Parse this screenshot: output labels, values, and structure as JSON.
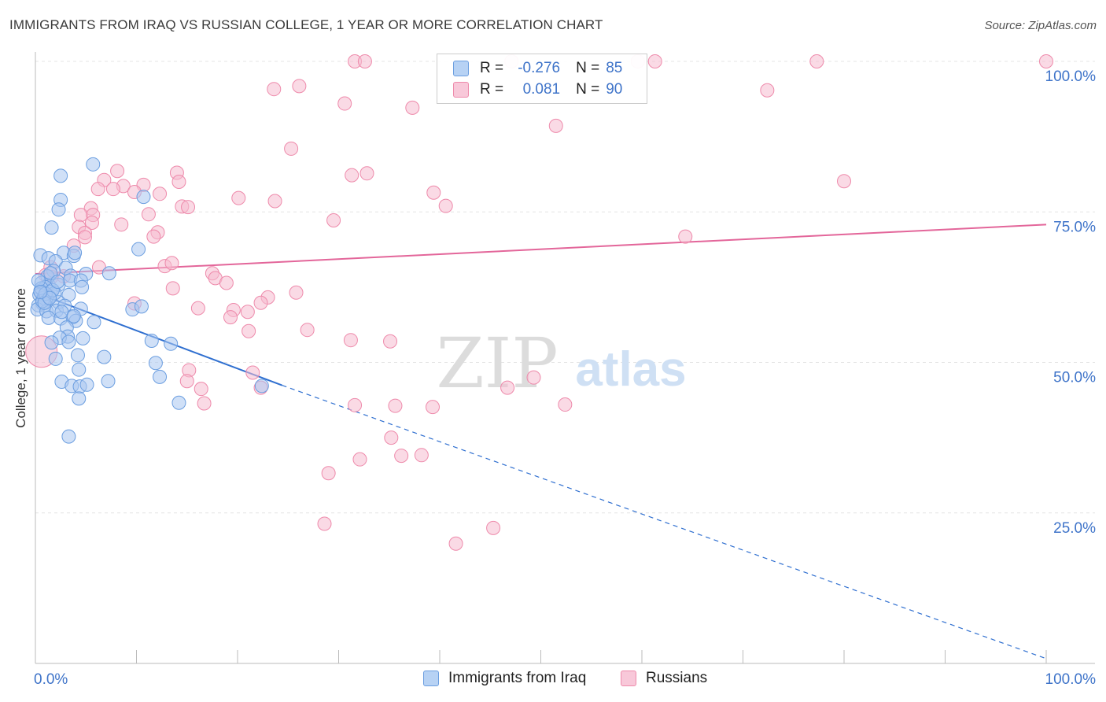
{
  "header": {
    "title": "IMMIGRANTS FROM IRAQ VS RUSSIAN COLLEGE, 1 YEAR OR MORE CORRELATION CHART",
    "source": "Source: ZipAtlas.com"
  },
  "watermark": {
    "zip": "ZIP",
    "atlas": "atlas"
  },
  "legend": {
    "r_label": "R =",
    "n_label": "N =",
    "series": [
      {
        "name": "Immigrants from Iraq",
        "r": "-0.276",
        "n": "85",
        "color": "#6b9ee0"
      },
      {
        "name": "Russians",
        "r": "0.081",
        "n": "90",
        "color": "#ee8aab"
      }
    ]
  },
  "colors": {
    "blue_fill": "#a9c7f0",
    "blue_stroke": "#6b9ee0",
    "blue_line": "#2f6fd0",
    "pink_fill": "#f6bcd0",
    "pink_stroke": "#ee8aab",
    "pink_line": "#e3669a",
    "axis_text": "#3f74c9",
    "grid": "#e4e4e4"
  },
  "chart_data": {
    "type": "scatter",
    "title": "IMMIGRANTS FROM IRAQ VS RUSSIAN COLLEGE, 1 YEAR OR MORE CORRELATION CHART",
    "xlabel": "",
    "ylabel": "College, 1 year or more",
    "xlim": [
      0,
      100
    ],
    "ylim": [
      0,
      100
    ],
    "x_tick_labels": [
      "0.0%",
      "100.0%"
    ],
    "y_tick_labels": [
      "100.0%",
      "75.0%",
      "50.0%",
      "25.0%"
    ],
    "y_ticks": [
      100,
      75,
      50,
      25
    ],
    "grid": true,
    "legend_position": "top-center",
    "series": [
      {
        "name": "Immigrants from Iraq",
        "color": "#6b9ee0",
        "trend": {
          "x0": 0,
          "y0": 61.6,
          "x1": 24.4,
          "y1": 46.2,
          "dashed_to_x": 100,
          "dashed_to_y": 0.8
        },
        "points": [
          [
            5.7,
            82.9
          ],
          [
            2.5,
            81.0
          ],
          [
            2.5,
            77.0
          ],
          [
            10.7,
            77.5
          ],
          [
            2.3,
            75.4
          ],
          [
            1.6,
            72.4
          ],
          [
            10.2,
            68.8
          ],
          [
            2.8,
            68.2
          ],
          [
            3.8,
            67.7
          ],
          [
            0.5,
            67.8
          ],
          [
            1.3,
            67.3
          ],
          [
            2.0,
            66.8
          ],
          [
            3.0,
            65.7
          ],
          [
            1.8,
            65.2
          ],
          [
            1.2,
            64.3
          ],
          [
            3.5,
            64.4
          ],
          [
            5.0,
            64.7
          ],
          [
            7.3,
            64.8
          ],
          [
            0.6,
            63.2
          ],
          [
            1.3,
            62.9
          ],
          [
            2.3,
            62.9
          ],
          [
            3.4,
            63.6
          ],
          [
            4.5,
            63.6
          ],
          [
            1.0,
            62.5
          ],
          [
            0.5,
            61.9
          ],
          [
            4.6,
            62.5
          ],
          [
            1.5,
            61.7
          ],
          [
            0.4,
            61.2
          ],
          [
            0.8,
            60.7
          ],
          [
            1.4,
            60.9
          ],
          [
            3.3,
            61.2
          ],
          [
            0.7,
            59.8
          ],
          [
            1.2,
            60.5
          ],
          [
            2.3,
            60.0
          ],
          [
            0.9,
            59.5
          ],
          [
            0.3,
            59.5
          ],
          [
            0.2,
            58.8
          ],
          [
            1.1,
            58.5
          ],
          [
            2.1,
            58.6
          ],
          [
            4.5,
            58.9
          ],
          [
            9.6,
            58.8
          ],
          [
            10.5,
            59.3
          ],
          [
            1.3,
            57.4
          ],
          [
            2.5,
            57.3
          ],
          [
            3.7,
            57.5
          ],
          [
            5.8,
            56.7
          ],
          [
            4.0,
            56.9
          ],
          [
            3.1,
            55.8
          ],
          [
            3.2,
            54.3
          ],
          [
            2.4,
            54.1
          ],
          [
            4.7,
            54.0
          ],
          [
            11.5,
            53.6
          ],
          [
            1.6,
            53.3
          ],
          [
            3.3,
            53.4
          ],
          [
            13.4,
            53.1
          ],
          [
            2.0,
            50.6
          ],
          [
            4.2,
            51.2
          ],
          [
            6.8,
            50.9
          ],
          [
            11.9,
            49.9
          ],
          [
            4.3,
            48.8
          ],
          [
            12.3,
            47.6
          ],
          [
            2.6,
            46.8
          ],
          [
            3.6,
            46.1
          ],
          [
            4.4,
            46.0
          ],
          [
            5.1,
            46.3
          ],
          [
            7.2,
            46.9
          ],
          [
            22.4,
            46.1
          ],
          [
            4.3,
            44.0
          ],
          [
            14.2,
            43.3
          ],
          [
            3.3,
            37.7
          ],
          [
            0.6,
            62.3
          ],
          [
            1.9,
            61.5
          ],
          [
            0.7,
            60.2
          ],
          [
            2.9,
            59.4
          ],
          [
            1.5,
            64.8
          ],
          [
            3.9,
            68.2
          ],
          [
            1.0,
            61.4
          ],
          [
            0.3,
            63.6
          ],
          [
            1.7,
            62.0
          ],
          [
            2.6,
            58.4
          ],
          [
            0.9,
            59.9
          ],
          [
            3.8,
            57.7
          ],
          [
            1.4,
            60.7
          ],
          [
            0.5,
            61.7
          ],
          [
            2.2,
            63.4
          ]
        ]
      },
      {
        "name": "Russians",
        "color": "#ee8aab",
        "trend": {
          "x0": 0,
          "y0": 64.7,
          "x1": 100,
          "y1": 72.9
        },
        "points": [
          [
            0.6,
            51.8
          ],
          [
            31.6,
            100.0
          ],
          [
            32.6,
            100.0
          ],
          [
            47.1,
            100.0
          ],
          [
            59.6,
            100.0
          ],
          [
            61.3,
            100.0
          ],
          [
            77.3,
            100.0
          ],
          [
            100.0,
            100.0
          ],
          [
            23.6,
            95.4
          ],
          [
            26.1,
            95.9
          ],
          [
            72.4,
            95.2
          ],
          [
            30.6,
            93.0
          ],
          [
            37.3,
            92.3
          ],
          [
            51.5,
            89.3
          ],
          [
            25.3,
            85.5
          ],
          [
            8.1,
            81.8
          ],
          [
            14.0,
            81.5
          ],
          [
            31.3,
            81.1
          ],
          [
            32.8,
            81.4
          ],
          [
            6.8,
            80.3
          ],
          [
            10.7,
            79.5
          ],
          [
            14.2,
            80.0
          ],
          [
            8.7,
            79.3
          ],
          [
            6.2,
            78.8
          ],
          [
            7.7,
            78.8
          ],
          [
            9.8,
            78.3
          ],
          [
            12.3,
            78.0
          ],
          [
            20.1,
            77.3
          ],
          [
            23.7,
            76.8
          ],
          [
            39.4,
            78.2
          ],
          [
            40.6,
            76.0
          ],
          [
            80.0,
            80.1
          ],
          [
            5.5,
            75.6
          ],
          [
            11.2,
            74.6
          ],
          [
            14.5,
            75.9
          ],
          [
            15.1,
            75.8
          ],
          [
            4.5,
            74.5
          ],
          [
            5.7,
            74.5
          ],
          [
            29.5,
            73.6
          ],
          [
            5.6,
            73.2
          ],
          [
            8.5,
            72.9
          ],
          [
            4.3,
            72.5
          ],
          [
            4.9,
            71.5
          ],
          [
            12.1,
            71.6
          ],
          [
            11.7,
            70.9
          ],
          [
            4.9,
            70.8
          ],
          [
            64.3,
            70.9
          ],
          [
            3.8,
            69.4
          ],
          [
            6.3,
            65.8
          ],
          [
            12.8,
            66.0
          ],
          [
            13.5,
            66.5
          ],
          [
            1.5,
            65.8
          ],
          [
            17.5,
            64.8
          ],
          [
            17.8,
            64.0
          ],
          [
            2.8,
            64.3
          ],
          [
            1.6,
            64.2
          ],
          [
            1.0,
            64.5
          ],
          [
            18.9,
            63.2
          ],
          [
            13.6,
            62.3
          ],
          [
            25.8,
            61.6
          ],
          [
            23.0,
            60.8
          ],
          [
            22.3,
            59.9
          ],
          [
            9.8,
            59.8
          ],
          [
            16.1,
            59.0
          ],
          [
            21.0,
            58.4
          ],
          [
            19.6,
            58.7
          ],
          [
            19.3,
            57.5
          ],
          [
            26.9,
            55.4
          ],
          [
            21.1,
            55.2
          ],
          [
            31.2,
            53.7
          ],
          [
            35.1,
            53.5
          ],
          [
            15.2,
            48.7
          ],
          [
            21.5,
            48.3
          ],
          [
            49.3,
            47.5
          ],
          [
            15.0,
            46.9
          ],
          [
            46.7,
            45.8
          ],
          [
            16.4,
            45.6
          ],
          [
            22.3,
            45.8
          ],
          [
            16.7,
            43.2
          ],
          [
            31.6,
            42.9
          ],
          [
            35.6,
            42.8
          ],
          [
            39.3,
            42.6
          ],
          [
            52.4,
            43.0
          ],
          [
            35.2,
            37.5
          ],
          [
            36.2,
            34.5
          ],
          [
            38.2,
            34.6
          ],
          [
            32.1,
            33.9
          ],
          [
            29.0,
            31.6
          ],
          [
            28.6,
            23.2
          ],
          [
            45.3,
            22.5
          ]
        ]
      }
    ],
    "extra_points": {
      "Russians": [
        [
          41.6,
          19.9
        ]
      ]
    }
  }
}
